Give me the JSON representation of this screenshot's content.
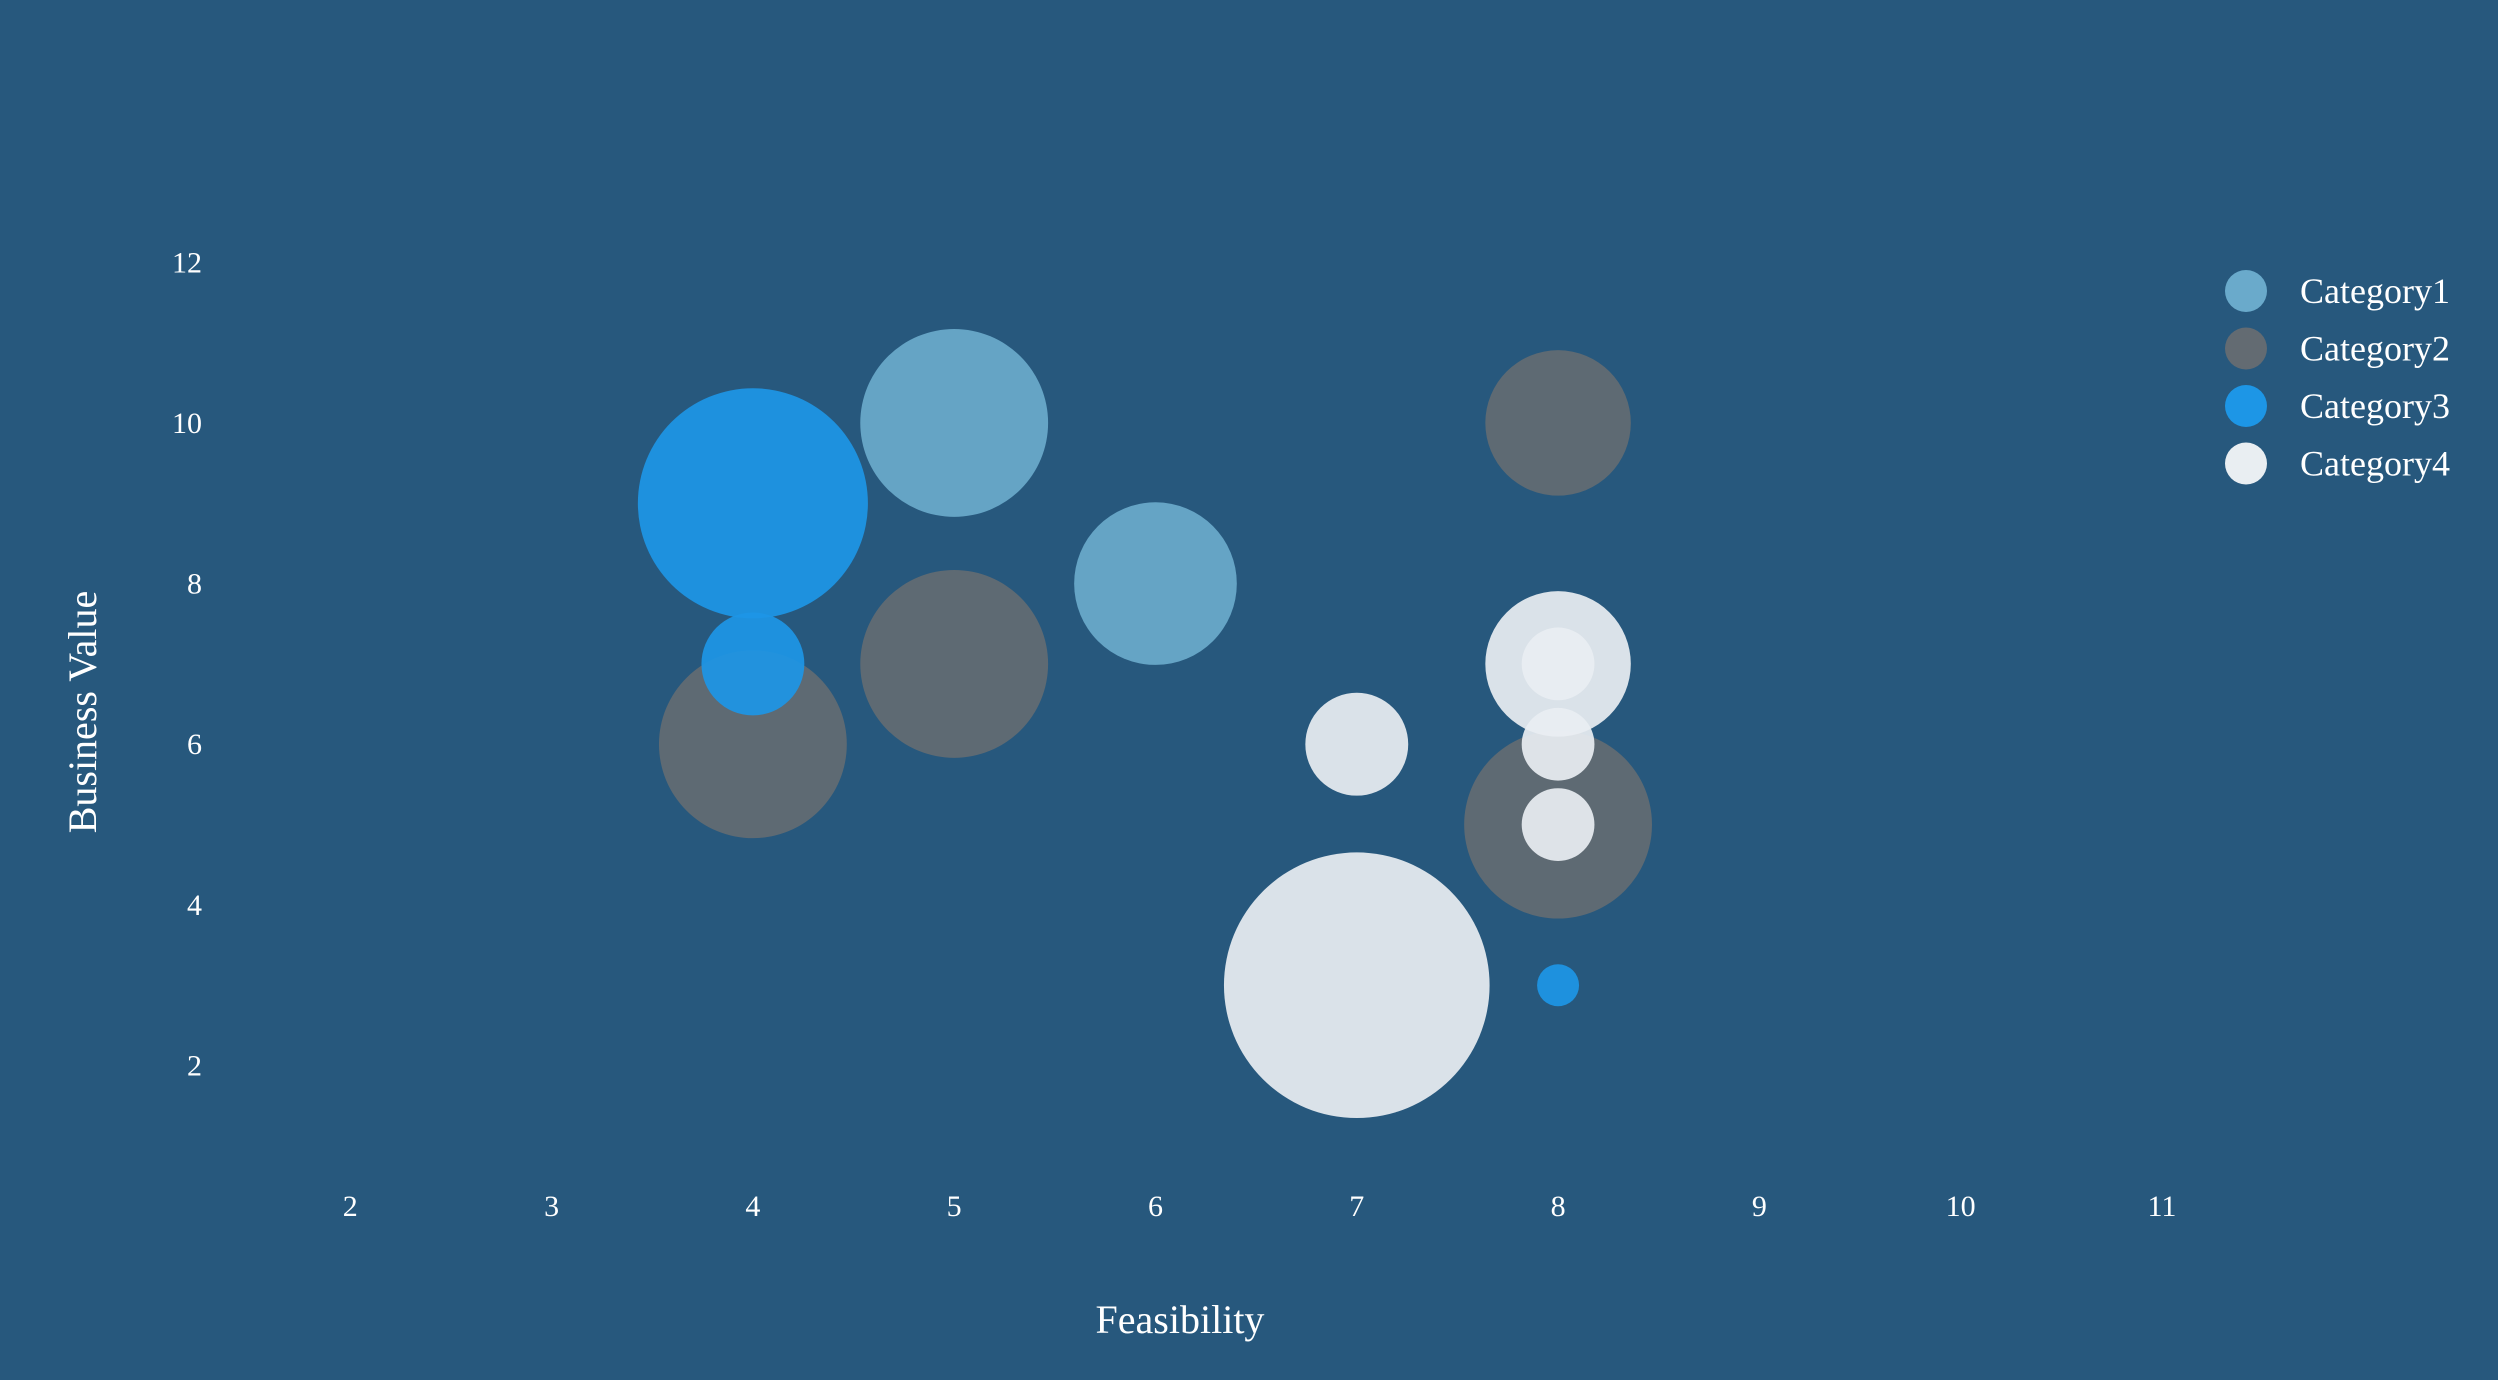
{
  "chart_data": {
    "type": "bubble",
    "xlabel": "Feasibility",
    "ylabel": "Business Value",
    "xlim": [
      1.0,
      11.8
    ],
    "ylim": [
      0.7,
      12.8
    ],
    "xticks": [
      2,
      3,
      4,
      5,
      6,
      7,
      8,
      9,
      10,
      11
    ],
    "yticks": [
      2,
      4,
      6,
      8,
      10,
      12
    ],
    "grid": false,
    "legend_position": "top-right",
    "background": "#27587d",
    "series": [
      {
        "name": "Category1",
        "color": "#6aaacb",
        "points": [
          {
            "x": 5,
            "y": 10,
            "size": 20
          },
          {
            "x": 6,
            "y": 8,
            "size": 15
          }
        ]
      },
      {
        "name": "Category2",
        "color": "#636b72",
        "points": [
          {
            "x": 4,
            "y": 6,
            "size": 20
          },
          {
            "x": 5,
            "y": 7,
            "size": 20
          },
          {
            "x": 8,
            "y": 10,
            "size": 12
          },
          {
            "x": 8,
            "y": 5,
            "size": 20
          }
        ]
      },
      {
        "name": "Category3",
        "color": "#1d96e6",
        "points": [
          {
            "x": 4,
            "y": 9,
            "size": 30
          },
          {
            "x": 4,
            "y": 7,
            "size": 6
          },
          {
            "x": 8,
            "y": 3,
            "size": 1
          }
        ]
      },
      {
        "name": "Category4",
        "color": "#e9eef2",
        "points": [
          {
            "x": 7,
            "y": 3,
            "size": 40
          },
          {
            "x": 7,
            "y": 6,
            "size": 6
          },
          {
            "x": 8,
            "y": 7,
            "size": 12
          },
          {
            "x": 8,
            "y": 5,
            "size": 3
          },
          {
            "x": 8,
            "y": 7,
            "size": 3
          },
          {
            "x": 8,
            "y": 6,
            "size": 3
          }
        ]
      }
    ]
  }
}
